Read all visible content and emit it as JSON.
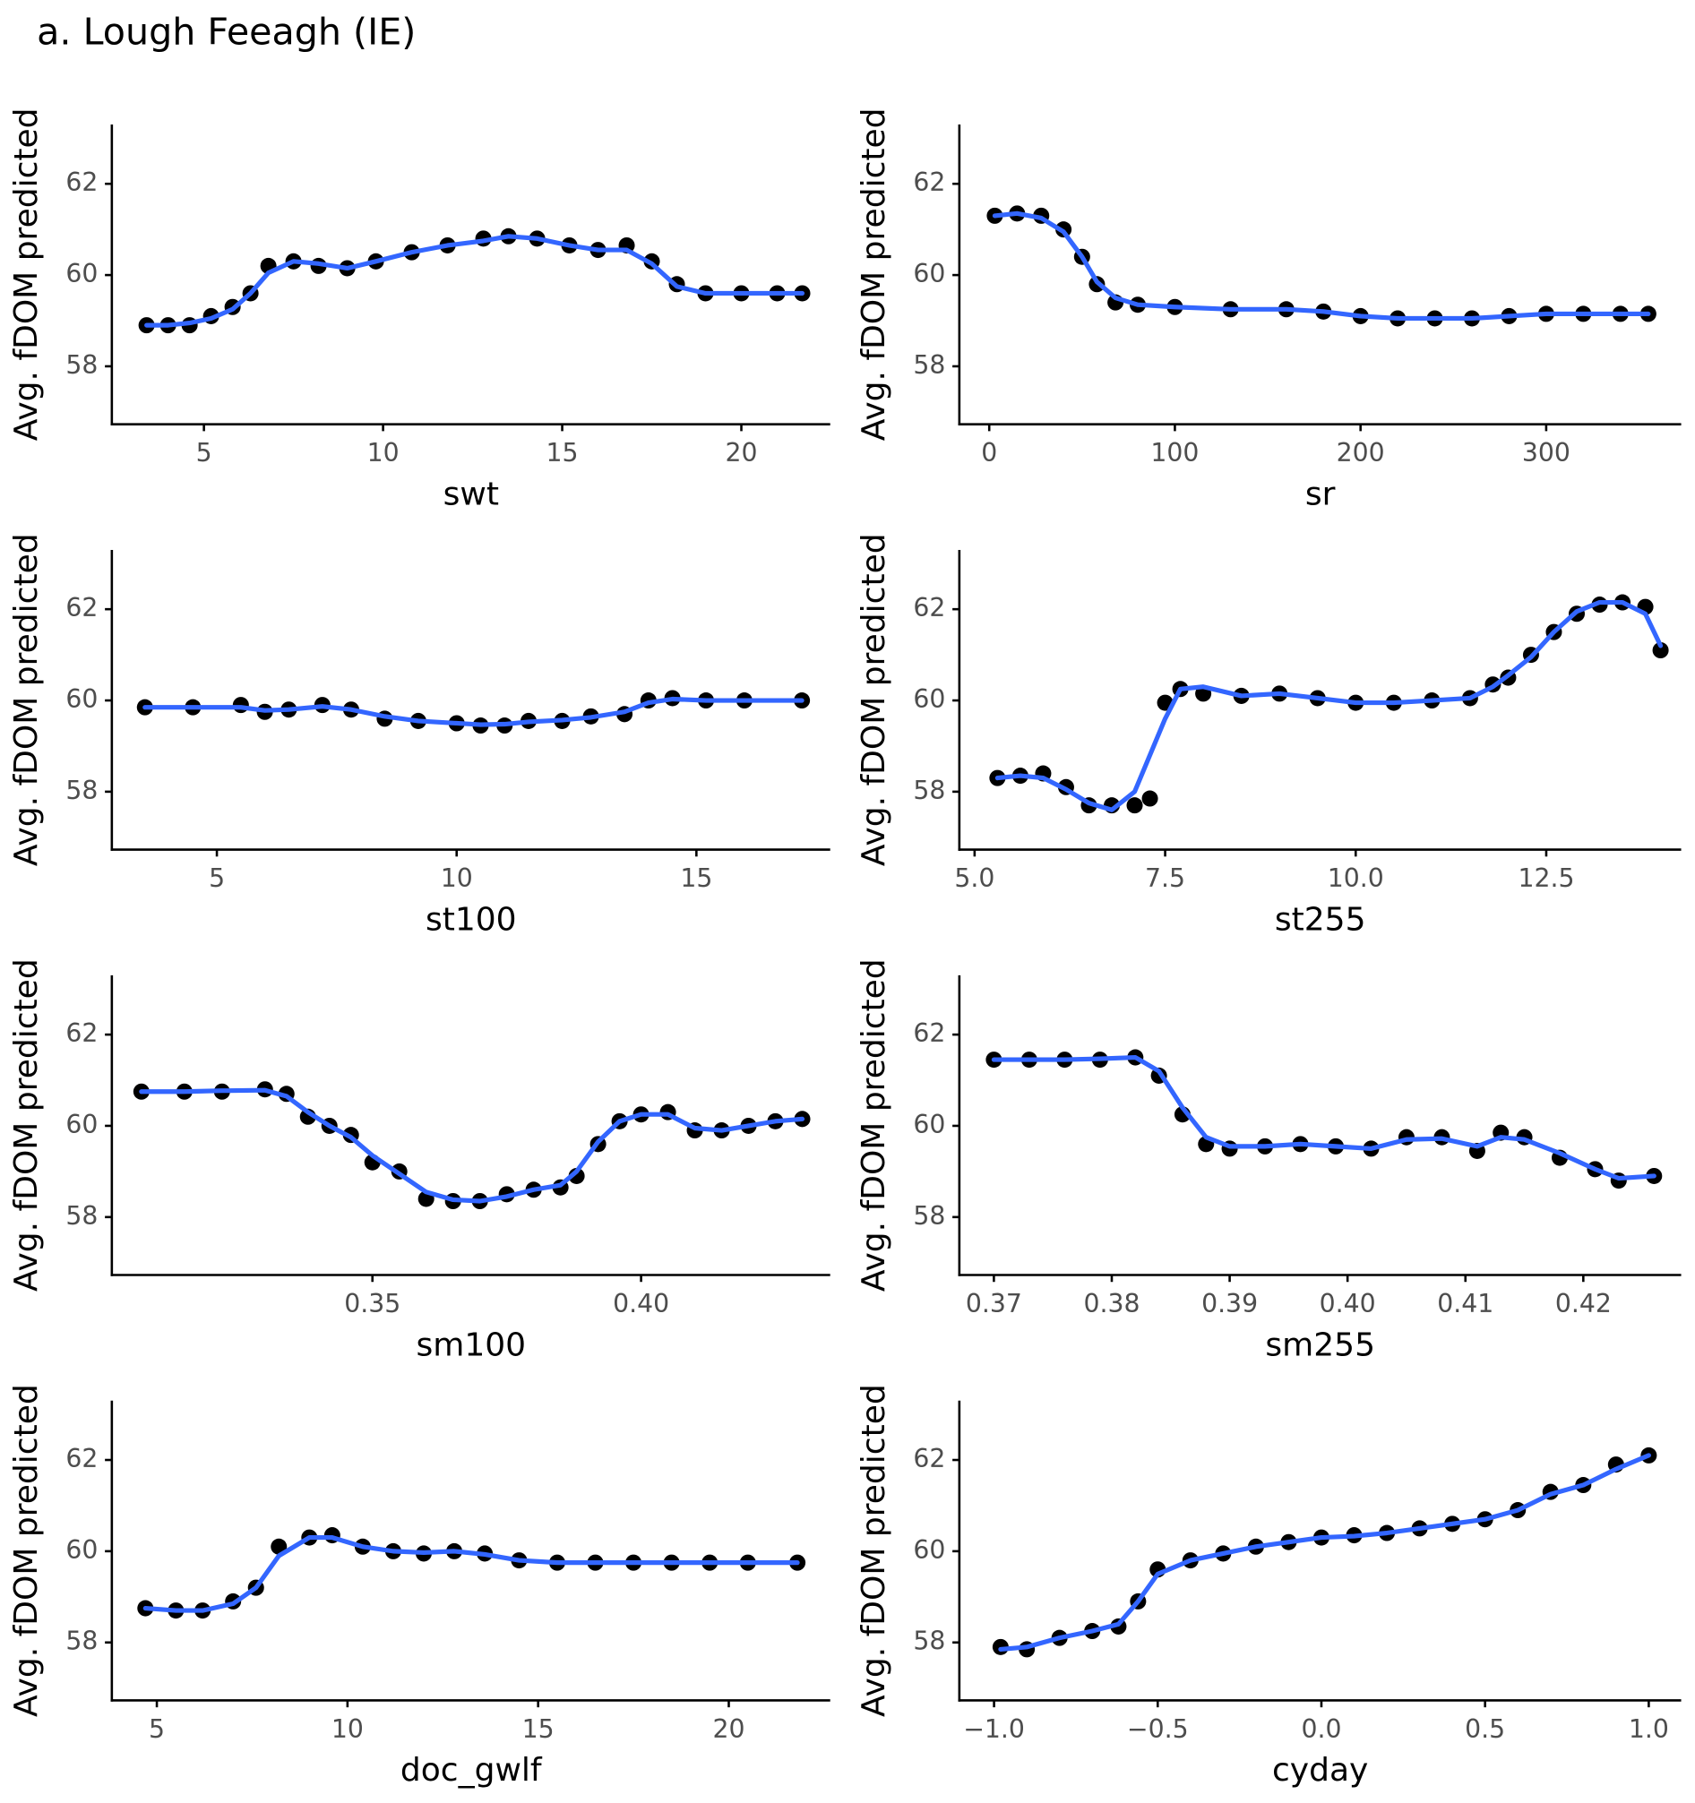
{
  "title": "a. Lough Feeagh (IE)",
  "chart_data": [
    {
      "type": "line",
      "x_label": "swt",
      "y_label": "Avg. fDOM predicted",
      "x": [
        3.4,
        4,
        4.6,
        5.2,
        5.8,
        6.3,
        6.8,
        7.5,
        8.2,
        9,
        9.8,
        10.8,
        11.8,
        12.8,
        13.5,
        14.3,
        15.2,
        16,
        16.8,
        17.5,
        18.2,
        19,
        20,
        21,
        21.7
      ],
      "series": [
        {
          "style": "points",
          "color": "#000000",
          "values": [
            58.9,
            58.9,
            58.9,
            59.1,
            59.3,
            59.6,
            60.2,
            60.3,
            60.2,
            60.15,
            60.3,
            60.5,
            60.65,
            60.8,
            60.85,
            60.8,
            60.65,
            60.55,
            60.65,
            60.3,
            59.8,
            59.6,
            59.6,
            59.6,
            59.6
          ]
        },
        {
          "style": "line",
          "color": "#3366ff",
          "values": [
            58.9,
            58.9,
            58.95,
            59.05,
            59.25,
            59.6,
            60.05,
            60.3,
            60.25,
            60.15,
            60.3,
            60.5,
            60.65,
            60.75,
            60.85,
            60.8,
            60.65,
            60.55,
            60.55,
            60.25,
            59.75,
            59.6,
            59.6,
            59.6,
            59.6
          ]
        }
      ],
      "xlim": [
        2.43,
        22.48
      ],
      "ylim": [
        56.73,
        63.3
      ],
      "xticks": [
        5,
        10,
        15,
        20
      ],
      "yticks": [
        58,
        60,
        62
      ]
    },
    {
      "type": "line",
      "x_label": "sr",
      "y_label": "Avg. fDOM predicted",
      "x": [
        3,
        15,
        28,
        40,
        50,
        58,
        68,
        80,
        100,
        130,
        160,
        180,
        200,
        220,
        240,
        260,
        280,
        300,
        320,
        340,
        355
      ],
      "series": [
        {
          "style": "points",
          "color": "#000000",
          "values": [
            61.3,
            61.35,
            61.3,
            61.0,
            60.4,
            59.8,
            59.4,
            59.35,
            59.3,
            59.25,
            59.25,
            59.2,
            59.1,
            59.05,
            59.05,
            59.05,
            59.1,
            59.15,
            59.15,
            59.15,
            59.15
          ]
        },
        {
          "style": "line",
          "color": "#3366ff",
          "values": [
            61.3,
            61.35,
            61.25,
            60.95,
            60.4,
            59.85,
            59.5,
            59.35,
            59.3,
            59.25,
            59.25,
            59.2,
            59.1,
            59.05,
            59.05,
            59.05,
            59.1,
            59.15,
            59.15,
            59.15,
            59.15
          ]
        }
      ],
      "xlim": [
        -16.1,
        372.7
      ],
      "ylim": [
        56.73,
        63.3
      ],
      "xticks": [
        0,
        100,
        200,
        300
      ],
      "yticks": [
        58,
        60,
        62
      ]
    },
    {
      "type": "line",
      "x_label": "st100",
      "y_label": "Avg. fDOM predicted",
      "x": [
        3.5,
        4.5,
        5.5,
        6,
        6.5,
        7.2,
        7.8,
        8.5,
        9.2,
        10,
        10.5,
        11,
        11.5,
        12.2,
        12.8,
        13.5,
        14,
        14.5,
        15.2,
        16,
        17.2
      ],
      "series": [
        {
          "style": "points",
          "color": "#000000",
          "values": [
            59.85,
            59.85,
            59.9,
            59.75,
            59.8,
            59.9,
            59.8,
            59.6,
            59.55,
            59.5,
            59.45,
            59.45,
            59.55,
            59.55,
            59.65,
            59.7,
            60.0,
            60.05,
            60.0,
            60.0,
            60.0
          ]
        },
        {
          "style": "line",
          "color": "#3366ff",
          "values": [
            59.85,
            59.85,
            59.85,
            59.78,
            59.8,
            59.87,
            59.8,
            59.65,
            59.55,
            59.5,
            59.47,
            59.48,
            59.53,
            59.57,
            59.63,
            59.75,
            59.95,
            60.03,
            60.0,
            60.0,
            60.0
          ]
        }
      ],
      "xlim": [
        2.81,
        17.79
      ],
      "ylim": [
        56.73,
        63.3
      ],
      "xticks": [
        5,
        10,
        15
      ],
      "yticks": [
        58,
        60,
        62
      ]
    },
    {
      "type": "line",
      "x_label": "st255",
      "y_label": "Avg. fDOM predicted",
      "x": [
        5.3,
        5.6,
        5.9,
        6.2,
        6.5,
        6.8,
        7.1,
        7.3,
        7.5,
        7.7,
        8,
        8.5,
        9,
        9.5,
        10,
        10.5,
        11,
        11.5,
        11.8,
        12,
        12.3,
        12.6,
        12.9,
        13.2,
        13.5,
        13.8,
        14
      ],
      "series": [
        {
          "style": "points",
          "color": "#000000",
          "values": [
            58.3,
            58.35,
            58.4,
            58.1,
            57.7,
            57.7,
            57.7,
            57.85,
            59.95,
            60.25,
            60.15,
            60.1,
            60.15,
            60.05,
            59.95,
            59.95,
            60.0,
            60.05,
            60.35,
            60.5,
            61.0,
            61.5,
            61.9,
            62.1,
            62.15,
            62.05,
            61.1
          ]
        },
        {
          "style": "line",
          "color": "#3366ff",
          "values": [
            58.3,
            58.35,
            58.3,
            58.05,
            57.75,
            57.6,
            58.0,
            58.8,
            59.6,
            60.25,
            60.3,
            60.1,
            60.15,
            60.05,
            59.95,
            59.95,
            60.0,
            60.05,
            60.3,
            60.55,
            60.95,
            61.5,
            61.95,
            62.15,
            62.15,
            61.9,
            61.2
          ]
        }
      ],
      "xlim": [
        4.8,
        14.27
      ],
      "ylim": [
        56.73,
        63.3
      ],
      "xticks": [
        {
          "value": 5,
          "label": "5.0"
        },
        7.5,
        {
          "value": 10,
          "label": "10.0"
        },
        12.5
      ],
      "yticks": [
        58,
        60,
        62
      ]
    },
    {
      "type": "line",
      "x_label": "sm100",
      "y_label": "Avg. fDOM predicted",
      "x": [
        0.307,
        0.315,
        0.322,
        0.33,
        0.334,
        0.338,
        0.342,
        0.346,
        0.35,
        0.355,
        0.36,
        0.365,
        0.37,
        0.375,
        0.38,
        0.385,
        0.388,
        0.392,
        0.396,
        0.4,
        0.405,
        0.41,
        0.415,
        0.42,
        0.425,
        0.43
      ],
      "series": [
        {
          "style": "points",
          "color": "#000000",
          "values": [
            60.75,
            60.75,
            60.75,
            60.8,
            60.7,
            60.2,
            60.0,
            59.8,
            59.2,
            59.0,
            58.4,
            58.35,
            58.35,
            58.5,
            58.6,
            58.65,
            58.9,
            59.6,
            60.1,
            60.25,
            60.3,
            59.9,
            59.9,
            60.0,
            60.1,
            60.15
          ]
        },
        {
          "style": "line",
          "color": "#3366ff",
          "values": [
            60.75,
            60.75,
            60.77,
            60.78,
            60.65,
            60.3,
            60.0,
            59.75,
            59.35,
            58.95,
            58.55,
            58.38,
            58.35,
            58.45,
            58.6,
            58.7,
            59.0,
            59.65,
            60.1,
            60.25,
            60.25,
            59.95,
            59.9,
            60.0,
            60.1,
            60.15
          ]
        }
      ],
      "xlim": [
        0.3015,
        0.4352
      ],
      "ylim": [
        56.73,
        63.3
      ],
      "xticks": [
        0.35,
        {
          "value": 0.4,
          "label": "0.40"
        }
      ],
      "yticks": [
        58,
        60,
        62
      ]
    },
    {
      "type": "line",
      "x_label": "sm255",
      "y_label": "Avg. fDOM predicted",
      "x": [
        0.37,
        0.373,
        0.376,
        0.379,
        0.382,
        0.384,
        0.386,
        0.388,
        0.39,
        0.393,
        0.396,
        0.399,
        0.402,
        0.405,
        0.408,
        0.411,
        0.413,
        0.415,
        0.418,
        0.421,
        0.423,
        0.426
      ],
      "series": [
        {
          "style": "points",
          "color": "#000000",
          "values": [
            61.45,
            61.45,
            61.45,
            61.45,
            61.5,
            61.1,
            60.25,
            59.6,
            59.5,
            59.55,
            59.6,
            59.55,
            59.5,
            59.75,
            59.75,
            59.45,
            59.85,
            59.75,
            59.3,
            59.05,
            58.8,
            58.9
          ]
        },
        {
          "style": "line",
          "color": "#3366ff",
          "values": [
            61.45,
            61.45,
            61.45,
            61.47,
            61.5,
            61.2,
            60.4,
            59.75,
            59.55,
            59.55,
            59.6,
            59.55,
            59.5,
            59.7,
            59.72,
            59.55,
            59.75,
            59.7,
            59.4,
            59.05,
            58.85,
            58.9
          ]
        }
      ],
      "xlim": [
        0.36707,
        0.4283
      ],
      "ylim": [
        56.73,
        63.3
      ],
      "xticks": [
        0.37,
        0.38,
        0.39,
        {
          "value": 0.4,
          "label": "0.40"
        },
        0.41,
        0.42
      ],
      "yticks": [
        58,
        60,
        62
      ]
    },
    {
      "type": "line",
      "x_label": "doc_gwlf",
      "y_label": "Avg. fDOM predicted",
      "x": [
        4.7,
        5.5,
        6.2,
        7,
        7.6,
        8.2,
        9,
        9.6,
        10.4,
        11.2,
        12,
        12.8,
        13.6,
        14.5,
        15.5,
        16.5,
        17.5,
        18.5,
        19.5,
        20.5,
        21.8
      ],
      "series": [
        {
          "style": "points",
          "color": "#000000",
          "values": [
            58.75,
            58.7,
            58.7,
            58.9,
            59.2,
            60.1,
            60.3,
            60.35,
            60.1,
            60.0,
            59.95,
            60.0,
            59.95,
            59.8,
            59.75,
            59.75,
            59.75,
            59.75,
            59.75,
            59.75,
            59.75
          ]
        },
        {
          "style": "line",
          "color": "#3366ff",
          "values": [
            58.75,
            58.7,
            58.7,
            58.85,
            59.2,
            59.9,
            60.3,
            60.3,
            60.1,
            60.0,
            59.97,
            60.0,
            59.93,
            59.8,
            59.75,
            59.75,
            59.75,
            59.75,
            59.75,
            59.75,
            59.75
          ]
        }
      ],
      "xlim": [
        3.82,
        22.66
      ],
      "ylim": [
        56.73,
        63.3
      ],
      "xticks": [
        5,
        10,
        15,
        20
      ],
      "yticks": [
        58,
        60,
        62
      ]
    },
    {
      "type": "line",
      "x_label": "cyday",
      "y_label": "Avg. fDOM predicted",
      "x": [
        -0.98,
        -0.9,
        -0.8,
        -0.7,
        -0.62,
        -0.56,
        -0.5,
        -0.4,
        -0.3,
        -0.2,
        -0.1,
        0,
        0.1,
        0.2,
        0.3,
        0.4,
        0.5,
        0.6,
        0.7,
        0.8,
        0.9,
        1.0
      ],
      "series": [
        {
          "style": "points",
          "color": "#000000",
          "values": [
            57.9,
            57.85,
            58.1,
            58.25,
            58.35,
            58.9,
            59.6,
            59.8,
            59.95,
            60.1,
            60.2,
            60.3,
            60.35,
            60.4,
            60.5,
            60.6,
            60.7,
            60.9,
            61.3,
            61.45,
            61.9,
            62.1
          ]
        },
        {
          "style": "line",
          "color": "#3366ff",
          "values": [
            57.85,
            57.9,
            58.1,
            58.25,
            58.4,
            58.9,
            59.5,
            59.8,
            59.95,
            60.1,
            60.2,
            60.3,
            60.33,
            60.4,
            60.5,
            60.6,
            60.7,
            60.9,
            61.25,
            61.45,
            61.8,
            62.1
          ]
        }
      ],
      "xlim": [
        -1.106,
        1.099
      ],
      "ylim": [
        56.73,
        63.3
      ],
      "xticks": [
        {
          "value": -1,
          "label": "−1.0"
        },
        {
          "value": -0.5,
          "label": "−0.5"
        },
        {
          "value": 0,
          "label": "0.0"
        },
        0.5,
        {
          "value": 1,
          "label": "1.0"
        }
      ],
      "yticks": [
        58,
        60,
        62
      ]
    }
  ]
}
